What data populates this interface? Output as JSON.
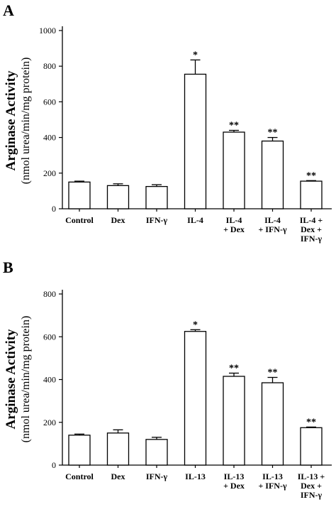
{
  "chart_data": [
    {
      "type": "bar",
      "panel": "A",
      "ylabel": "Arginase Activity",
      "ylabel_unit": "(nmol urea/min/mg protein)",
      "ylim": [
        0,
        1000
      ],
      "yticks": [
        0,
        200,
        400,
        600,
        800,
        1000
      ],
      "categories": [
        [
          "Control"
        ],
        [
          "Dex"
        ],
        [
          "IFN-γ"
        ],
        [
          "IL-4"
        ],
        [
          "IL-4",
          "+ Dex"
        ],
        [
          "IL-4",
          "+ IFN-γ"
        ],
        [
          "IL-4 +",
          "Dex +",
          "IFN-γ"
        ]
      ],
      "values": [
        150,
        130,
        125,
        755,
        430,
        380,
        155
      ],
      "errors": [
        5,
        10,
        10,
        80,
        10,
        20,
        3
      ],
      "significance": [
        "",
        "",
        "",
        "*",
        "**",
        "**",
        "**"
      ],
      "grid": false,
      "bar_color": "#ffffff"
    },
    {
      "type": "bar",
      "panel": "B",
      "ylabel": "Arginase Activity",
      "ylabel_unit": "(nmol urea/min/mg protein)",
      "ylim": [
        0,
        800
      ],
      "yticks": [
        0,
        200,
        400,
        600,
        800
      ],
      "categories": [
        [
          "Control"
        ],
        [
          "Dex"
        ],
        [
          "IFN-γ"
        ],
        [
          "IL-13"
        ],
        [
          "IL-13",
          "+ Dex"
        ],
        [
          "IL-13",
          "+ IFN-γ"
        ],
        [
          "IL-13 +",
          "Dex +",
          "IFN-γ"
        ]
      ],
      "values": [
        140,
        150,
        120,
        625,
        415,
        385,
        175
      ],
      "errors": [
        5,
        15,
        10,
        8,
        15,
        25,
        3
      ],
      "significance": [
        "",
        "",
        "",
        "*",
        "**",
        "**",
        "**"
      ],
      "grid": false,
      "bar_color": "#ffffff"
    }
  ]
}
